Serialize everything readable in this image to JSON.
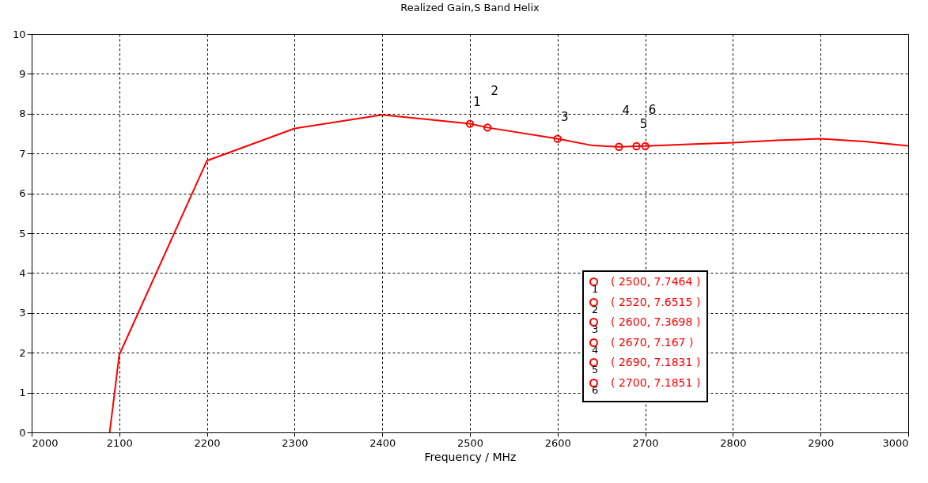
{
  "chart_data": {
    "type": "line",
    "title": "Realized Gain,S Band Helix",
    "xlabel": "Frequency / MHz",
    "xlim": [
      2000,
      3000
    ],
    "xticks": [
      2000,
      2100,
      2200,
      2300,
      2400,
      2500,
      2600,
      2700,
      2800,
      2900,
      3000
    ],
    "ylim": [
      0,
      10
    ],
    "yticks": [
      0,
      1,
      2,
      3,
      4,
      5,
      6,
      7,
      8,
      9,
      10
    ],
    "grid": true,
    "series": [
      {
        "type": "line",
        "color": "#ff0000",
        "x": [
          2089,
          2100,
          2200,
          2300,
          2400,
          2500,
          2520,
          2600,
          2640,
          2670,
          2690,
          2700,
          2750,
          2800,
          2850,
          2900,
          2950,
          3000
        ],
        "values": [
          0,
          1.95,
          6.82,
          7.63,
          7.97,
          7.7464,
          7.6515,
          7.3698,
          7.2,
          7.167,
          7.1831,
          7.1851,
          7.23,
          7.27,
          7.33,
          7.37,
          7.3,
          7.19
        ]
      },
      {
        "type": "scatter",
        "marker": "circle",
        "color": "#ff0000",
        "x": [
          2500,
          2520,
          2600,
          2670,
          2690,
          2700
        ],
        "values": [
          7.7464,
          7.6515,
          7.3698,
          7.167,
          7.1831,
          7.1851
        ]
      }
    ],
    "annotations": [
      {
        "text": "1",
        "x": 2500,
        "y": 7.7464
      },
      {
        "text": "2",
        "x": 2520,
        "y": 7.6515
      },
      {
        "text": "3",
        "x": 2600,
        "y": 7.3698
      },
      {
        "text": "4",
        "x": 2670,
        "y": 7.167
      },
      {
        "text": "5",
        "x": 2690,
        "y": 7.1831
      },
      {
        "text": "6",
        "x": 2700,
        "y": 7.1851
      },
      "( 2500, 7.7464 )",
      "( 2520, 7.6515 )",
      "( 2600, 7.3698 )",
      "( 2670, 7.167 )",
      "( 2690, 7.1831 )",
      "( 2700, 7.1851 )"
    ]
  }
}
